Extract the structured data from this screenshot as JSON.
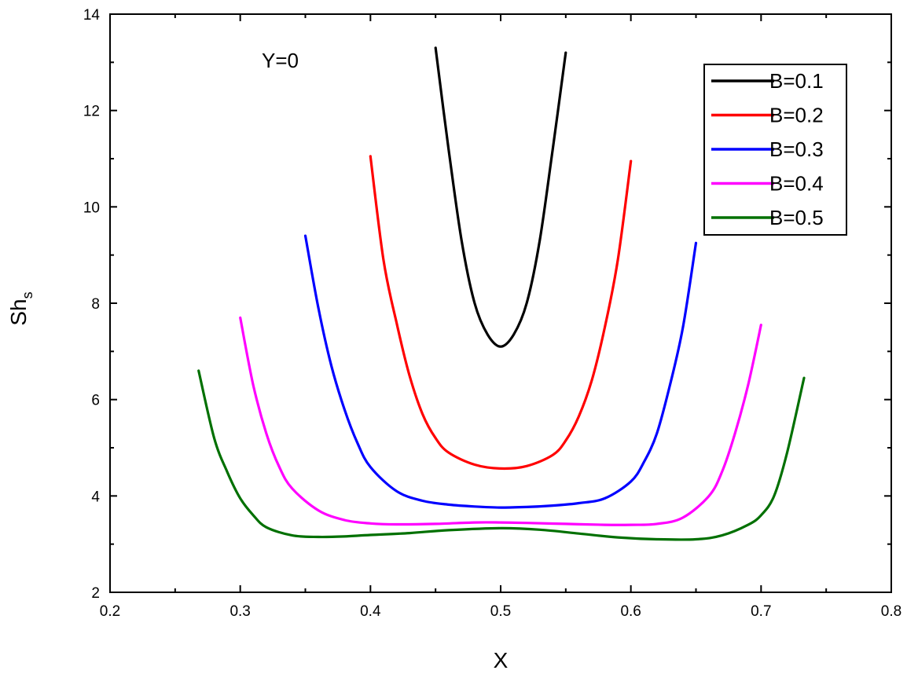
{
  "chart_data": {
    "type": "line",
    "xlabel": "X",
    "ylabel": "Sh",
    "ylabel_subscript": "s",
    "xlim": [
      0.2,
      0.8
    ],
    "ylim": [
      2,
      14
    ],
    "xticks": [
      "0.2",
      "0.3",
      "0.4",
      "0.5",
      "0.6",
      "0.7",
      "0.8"
    ],
    "yticks": [
      "2",
      "4",
      "6",
      "8",
      "10",
      "12",
      "14"
    ],
    "annotation": "Y=0",
    "grid": false,
    "legend_position": "top-right",
    "series": [
      {
        "name": "B=0.1",
        "color": "#000000",
        "x": [
          0.45,
          0.46,
          0.47,
          0.48,
          0.49,
          0.5,
          0.51,
          0.52,
          0.53,
          0.54,
          0.55
        ],
        "y": [
          13.3,
          11.2,
          9.3,
          8.0,
          7.35,
          7.1,
          7.35,
          8.0,
          9.3,
          11.2,
          13.2
        ]
      },
      {
        "name": "B=0.2",
        "color": "#ff0000",
        "x": [
          0.4,
          0.41,
          0.42,
          0.43,
          0.44,
          0.45,
          0.46,
          0.48,
          0.5,
          0.52,
          0.54,
          0.55,
          0.56,
          0.57,
          0.58,
          0.59,
          0.6
        ],
        "y": [
          11.05,
          8.9,
          7.6,
          6.5,
          5.7,
          5.2,
          4.9,
          4.65,
          4.57,
          4.62,
          4.85,
          5.15,
          5.65,
          6.4,
          7.5,
          8.9,
          10.95
        ]
      },
      {
        "name": "B=0.3",
        "color": "#0000ff",
        "x": [
          0.35,
          0.36,
          0.37,
          0.38,
          0.39,
          0.4,
          0.42,
          0.44,
          0.46,
          0.48,
          0.5,
          0.52,
          0.54,
          0.56,
          0.58,
          0.6,
          0.61,
          0.62,
          0.63,
          0.64,
          0.65
        ],
        "y": [
          9.4,
          7.9,
          6.7,
          5.8,
          5.1,
          4.6,
          4.1,
          3.9,
          3.82,
          3.78,
          3.76,
          3.77,
          3.8,
          3.85,
          3.95,
          4.3,
          4.7,
          5.3,
          6.3,
          7.5,
          9.25
        ]
      },
      {
        "name": "B=0.4",
        "color": "#ff00ff",
        "x": [
          0.3,
          0.31,
          0.32,
          0.33,
          0.34,
          0.36,
          0.38,
          0.4,
          0.42,
          0.45,
          0.48,
          0.5,
          0.52,
          0.55,
          0.58,
          0.6,
          0.62,
          0.64,
          0.66,
          0.67,
          0.68,
          0.69,
          0.7
        ],
        "y": [
          7.7,
          6.3,
          5.3,
          4.6,
          4.15,
          3.7,
          3.5,
          3.43,
          3.41,
          3.42,
          3.45,
          3.45,
          3.44,
          3.42,
          3.4,
          3.4,
          3.42,
          3.55,
          4.0,
          4.5,
          5.3,
          6.3,
          7.55
        ]
      },
      {
        "name": "B=0.5",
        "color": "#007000",
        "x": [
          0.268,
          0.28,
          0.29,
          0.3,
          0.31,
          0.32,
          0.34,
          0.36,
          0.38,
          0.4,
          0.43,
          0.46,
          0.5,
          0.53,
          0.56,
          0.59,
          0.62,
          0.65,
          0.67,
          0.69,
          0.7,
          0.71,
          0.72,
          0.733
        ],
        "y": [
          6.6,
          5.2,
          4.5,
          3.95,
          3.6,
          3.35,
          3.18,
          3.15,
          3.16,
          3.19,
          3.23,
          3.29,
          3.33,
          3.3,
          3.22,
          3.14,
          3.1,
          3.1,
          3.18,
          3.4,
          3.6,
          4.0,
          4.9,
          6.45
        ]
      }
    ]
  }
}
